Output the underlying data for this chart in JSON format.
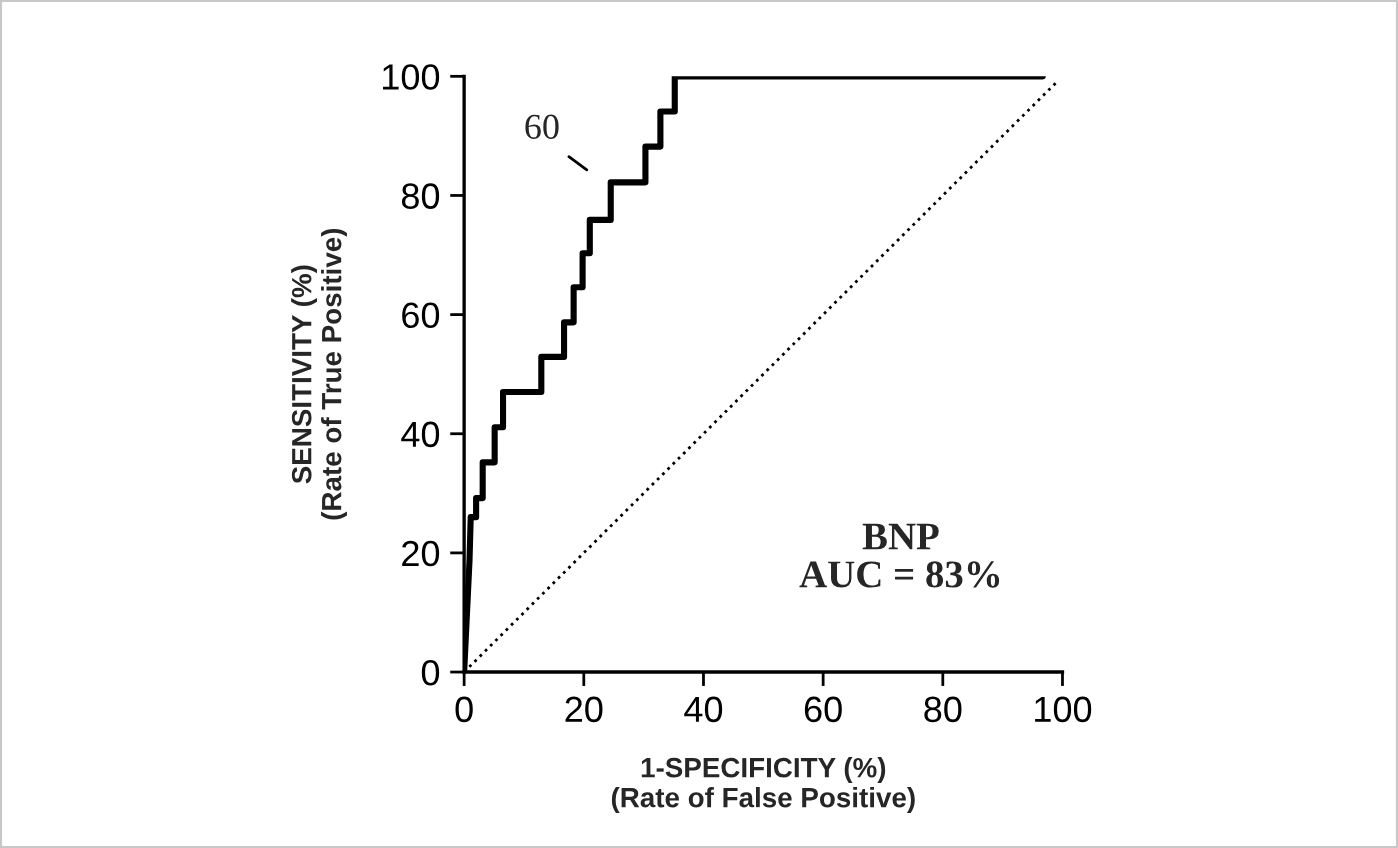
{
  "chart_data": {
    "type": "line",
    "xlabel": "1-SPECIFICITY (%)\n(Rate of False Positive)",
    "ylabel": "SENSITIVITY (%)\n(Rate of True Positive)",
    "xlim": [
      0,
      100
    ],
    "ylim": [
      0,
      100
    ],
    "xticks": [
      0,
      20,
      40,
      60,
      80,
      100
    ],
    "yticks": [
      0,
      20,
      40,
      60,
      80,
      100
    ],
    "grid": false,
    "legend": false,
    "series": [
      {
        "color": "#000000",
        "line_style": "solid",
        "x": [
          0,
          0.9,
          1.1,
          2,
          2,
          3.1,
          3.1,
          5.1,
          5.1,
          6.5,
          6.5,
          12.9,
          12.9,
          16.7,
          16.7,
          18.3,
          18.3,
          19.8,
          19.8,
          21,
          21,
          24.5,
          24.5,
          30.3,
          30.3,
          32.8,
          32.8,
          35.2,
          35.2,
          96.7
        ],
        "values": [
          0,
          18.8,
          26,
          26,
          29.2,
          29.2,
          35.2,
          35.2,
          41.1,
          41.1,
          47,
          47,
          52.9,
          52.9,
          58.7,
          58.7,
          64.6,
          64.6,
          70.3,
          70.3,
          75.9,
          75.9,
          82.2,
          82.2,
          88.2,
          88.2,
          94.1,
          94.1,
          100,
          100
        ]
      },
      {
        "color": "#000000",
        "line_style": "dotted",
        "x": [
          0,
          99
        ],
        "values": [
          0,
          99
        ]
      }
    ],
    "annotations": [
      "60",
      "BNP\nAUC = 83%"
    ]
  }
}
